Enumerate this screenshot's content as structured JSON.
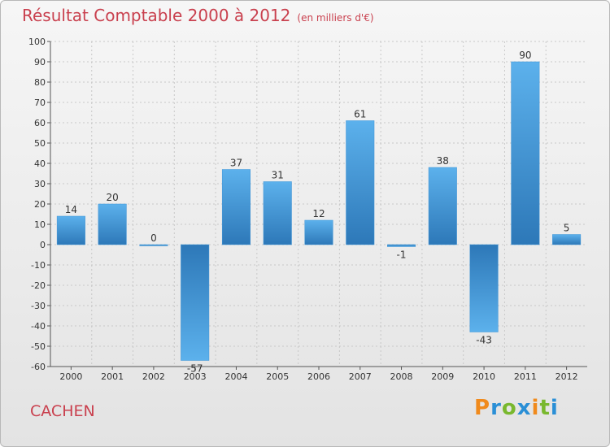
{
  "chart_data": {
    "type": "bar",
    "title": "Résultat Comptable 2000 à 2012",
    "subtitle": "(en milliers d'€)",
    "categories": [
      "2000",
      "2001",
      "2002",
      "2003",
      "2004",
      "2005",
      "2006",
      "2007",
      "2008",
      "2009",
      "2010",
      "2011",
      "2012"
    ],
    "values": [
      14,
      20,
      0,
      -57,
      37,
      31,
      12,
      61,
      -1,
      38,
      -43,
      90,
      5
    ],
    "ylim": [
      -60,
      100
    ],
    "yticks": [
      100,
      90,
      80,
      70,
      60,
      50,
      40,
      30,
      20,
      10,
      0,
      -10,
      -20,
      -30,
      -40,
      -50,
      -60
    ],
    "grid": true,
    "bar_color": "#3d93d6",
    "bar_color_light": "#5cb1ec",
    "bar_color_dark": "#2d78b8"
  },
  "commune": "CACHEN",
  "logo": {
    "chars": [
      "P",
      "r",
      "o",
      "x",
      "i",
      "t",
      "i"
    ]
  }
}
